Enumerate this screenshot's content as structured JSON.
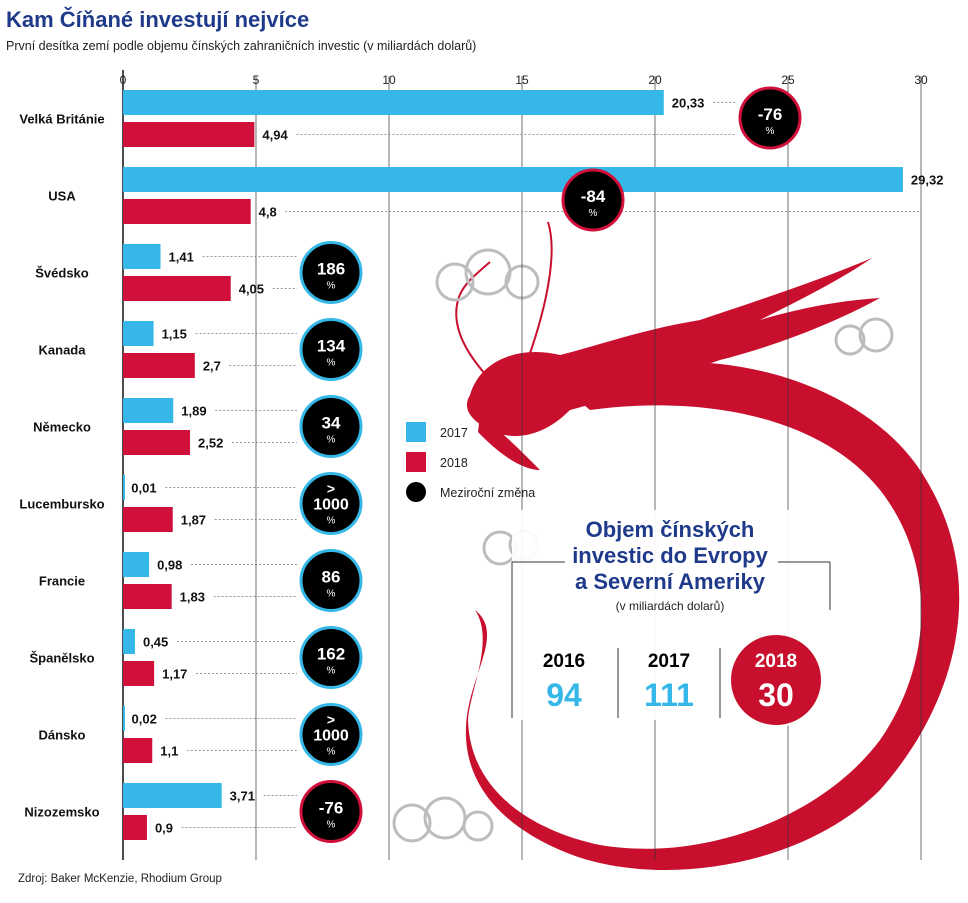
{
  "title": "Kam Číňané investují nejvíce",
  "subtitle": "První desítka zemí podle objemu čínských zahraničních investic  (v miliardách dolarů)",
  "source": "Zdroj:  Baker McKenzie, Rhodium Group",
  "colors": {
    "title": "#1f3a8a",
    "y2017": "#35b8e8",
    "y2018": "#d0103a",
    "circle": "#000000",
    "circle_ring": "#35b8e8",
    "circle_ring_neg": "#d0103a",
    "dragon": "#c8102e",
    "grid": "#333333"
  },
  "legend": {
    "items": [
      {
        "label": "2017",
        "color": "#35b8e8",
        "shape": "square"
      },
      {
        "label": "2018",
        "color": "#d0103a",
        "shape": "square"
      },
      {
        "label": "Meziroční změna",
        "color": "#000000",
        "shape": "circle"
      }
    ]
  },
  "chart_data": {
    "type": "bar",
    "orientation": "horizontal",
    "xlim": [
      0,
      30
    ],
    "xticks": [
      "0",
      "5",
      "10",
      "15",
      "20",
      "25",
      "30"
    ],
    "categories": [
      "Velká Británie",
      "USA",
      "Švédsko",
      "Kanada",
      "Německo",
      "Lucembursko",
      "Francie",
      "Španělsko",
      "Dánsko",
      "Nizozemsko"
    ],
    "series": [
      {
        "name": "2017",
        "values": [
          20.33,
          29.32,
          1.41,
          1.15,
          1.89,
          0.01,
          0.98,
          0.45,
          0.02,
          3.71
        ],
        "labels": [
          "20,33",
          "29,32",
          "1,41",
          "1,15",
          "1,89",
          "0,01",
          "0,98",
          "0,45",
          "0,02",
          "3,71"
        ]
      },
      {
        "name": "2018",
        "values": [
          4.94,
          4.8,
          4.05,
          2.7,
          2.52,
          1.87,
          1.83,
          1.17,
          1.1,
          0.9
        ],
        "labels": [
          "4,94",
          "4,8",
          "4,05",
          "2,7",
          "2,52",
          "1,87",
          "1,83",
          "1,17",
          "1,1",
          "0,9"
        ]
      }
    ],
    "change": [
      {
        "value": "-76",
        "unit": "%",
        "negative": true
      },
      {
        "value": "-84",
        "unit": "%",
        "negative": true
      },
      {
        "value": "186",
        "unit": "%",
        "negative": false
      },
      {
        "value": "134",
        "unit": "%",
        "negative": false
      },
      {
        "value": "34",
        "unit": "%",
        "negative": false
      },
      {
        "value": ">",
        "value2": "1000",
        "unit": "%",
        "negative": false
      },
      {
        "value": "86",
        "unit": "%",
        "negative": false
      },
      {
        "value": "162",
        "unit": "%",
        "negative": false
      },
      {
        "value": ">",
        "value2": "1000",
        "unit": "%",
        "negative": false
      },
      {
        "value": "-76",
        "unit": "%",
        "negative": true
      }
    ]
  },
  "inset": {
    "title_lines": [
      "Objem čínských",
      "investic do Evropy",
      "a Severní Ameriky"
    ],
    "subtitle": "(v miliardách dolarů)",
    "years": [
      {
        "year": "2016",
        "value": "94"
      },
      {
        "year": "2017",
        "value": "111"
      },
      {
        "year": "2018",
        "value": "30"
      }
    ]
  }
}
